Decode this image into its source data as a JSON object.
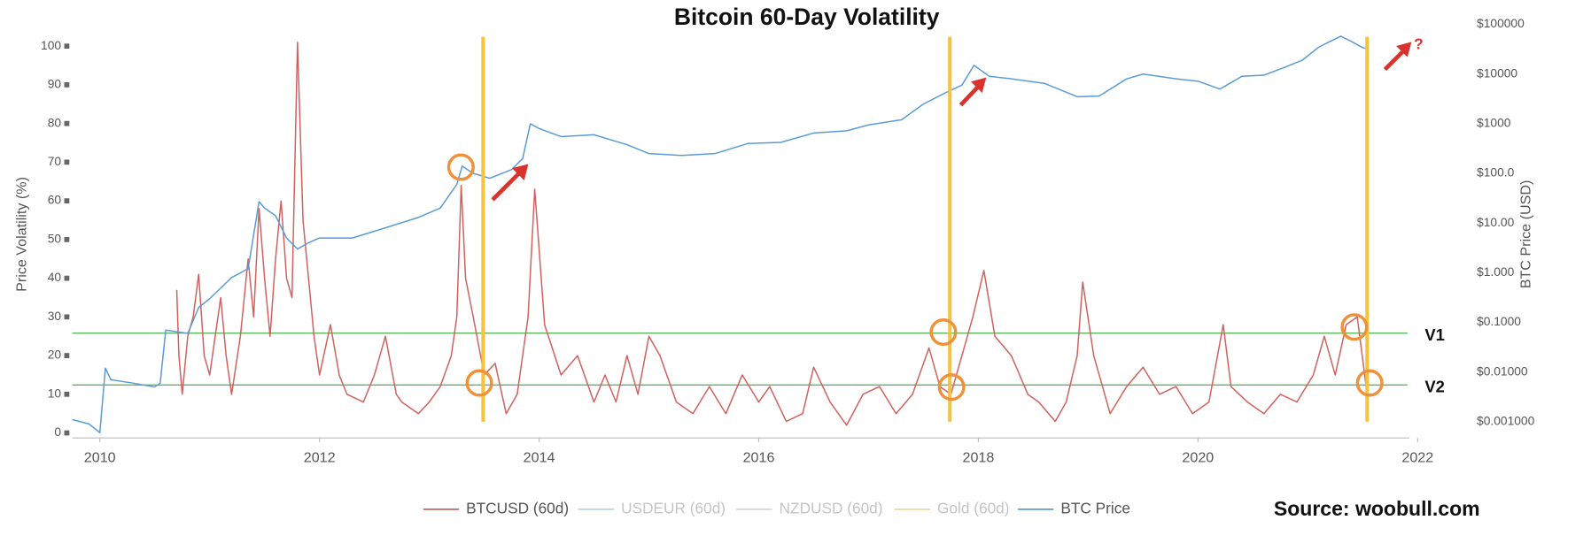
{
  "chart_data": {
    "type": "line",
    "title": "Bitcoin 60-Day Volatility",
    "ylabel": "Price Volatility (%)",
    "y2label": "BTC Price (USD)",
    "source": "Source: woobull.com",
    "xlim": [
      2009.75,
      2022
    ],
    "xticks": [
      2010,
      2012,
      2014,
      2016,
      2018,
      2020,
      2022
    ],
    "ylim": [
      -1.3,
      108.2
    ],
    "yticks": [
      0,
      10,
      20,
      30,
      40,
      50,
      60,
      70,
      80,
      90,
      100
    ],
    "y2lim": [
      0.00047,
      159000
    ],
    "y2scale": "log",
    "y2ticks": [
      {
        "value": 100000,
        "label": "$100000"
      },
      {
        "value": 10000,
        "label": "$10000"
      },
      {
        "value": 1000,
        "label": "$1000"
      },
      {
        "value": 100,
        "label": "$100.0"
      },
      {
        "value": 10,
        "label": "$10.00"
      },
      {
        "value": 1,
        "label": "$1.000"
      },
      {
        "value": 0.1,
        "label": "$0.1000"
      },
      {
        "value": 0.01,
        "label": "$0.01000"
      },
      {
        "value": 0.001,
        "label": "$0.001000"
      }
    ],
    "series": [
      {
        "name": "BTCUSD (60d)",
        "color": "#d0625e",
        "x": [
          2010.7,
          2010.72,
          2010.75,
          2010.8,
          2010.85,
          2010.9,
          2010.95,
          2011.0,
          2011.05,
          2011.1,
          2011.15,
          2011.2,
          2011.28,
          2011.35,
          2011.4,
          2011.45,
          2011.5,
          2011.55,
          2011.6,
          2011.65,
          2011.7,
          2011.75,
          2011.8,
          2011.85,
          2011.9,
          2011.95,
          2012.0,
          2012.1,
          2012.18,
          2012.25,
          2012.4,
          2012.5,
          2012.6,
          2012.7,
          2012.75,
          2012.9,
          2013.0,
          2013.1,
          2013.2,
          2013.25,
          2013.29,
          2013.33,
          2013.4,
          2013.5,
          2013.6,
          2013.7,
          2013.8,
          2013.9,
          2013.96,
          2014.05,
          2014.2,
          2014.35,
          2014.5,
          2014.6,
          2014.7,
          2014.8,
          2014.9,
          2015.0,
          2015.1,
          2015.25,
          2015.4,
          2015.55,
          2015.7,
          2015.85,
          2016.0,
          2016.1,
          2016.25,
          2016.4,
          2016.5,
          2016.65,
          2016.8,
          2016.95,
          2017.1,
          2017.25,
          2017.4,
          2017.55,
          2017.65,
          2017.75,
          2017.85,
          2017.95,
          2018.05,
          2018.15,
          2018.3,
          2018.45,
          2018.55,
          2018.7,
          2018.8,
          2018.9,
          2018.95,
          2019.05,
          2019.2,
          2019.35,
          2019.5,
          2019.65,
          2019.8,
          2019.95,
          2020.1,
          2020.23,
          2020.3,
          2020.45,
          2020.6,
          2020.75,
          2020.9,
          2021.05,
          2021.15,
          2021.25,
          2021.35,
          2021.45,
          2021.55
        ],
        "values": [
          37,
          20,
          10,
          25,
          30,
          41,
          20,
          15,
          25,
          35,
          20,
          10,
          25,
          45,
          30,
          58,
          40,
          25,
          45,
          60,
          40,
          35,
          101,
          55,
          40,
          25,
          15,
          28,
          15,
          10,
          8,
          15,
          25,
          10,
          8,
          5,
          8,
          12,
          20,
          30,
          64,
          40,
          30,
          15,
          18,
          5,
          10,
          30,
          63,
          28,
          15,
          20,
          8,
          15,
          8,
          20,
          10,
          25,
          20,
          8,
          5,
          12,
          5,
          15,
          8,
          12,
          3,
          5,
          17,
          8,
          2,
          10,
          12,
          5,
          10,
          22,
          12,
          10,
          20,
          30,
          42,
          25,
          20,
          10,
          8,
          3,
          8,
          20,
          39,
          20,
          5,
          12,
          17,
          10,
          12,
          5,
          8,
          28,
          12,
          8,
          5,
          10,
          8,
          15,
          25,
          15,
          28,
          30,
          8
        ]
      },
      {
        "name": "BTC Price",
        "color": "#5b9bd5",
        "axis": "y2",
        "x": [
          2009.75,
          2009.9,
          2010.0,
          2010.05,
          2010.1,
          2010.3,
          2010.5,
          2010.55,
          2010.6,
          2010.8,
          2010.9,
          2011.0,
          2011.2,
          2011.35,
          2011.45,
          2011.5,
          2011.6,
          2011.7,
          2011.8,
          2011.9,
          2012.0,
          2012.3,
          2012.6,
          2012.9,
          2013.1,
          2013.25,
          2013.3,
          2013.4,
          2013.55,
          2013.75,
          2013.85,
          2013.92,
          2014.0,
          2014.2,
          2014.5,
          2014.8,
          2015.0,
          2015.3,
          2015.6,
          2015.9,
          2016.2,
          2016.5,
          2016.8,
          2017.0,
          2017.3,
          2017.5,
          2017.7,
          2017.85,
          2017.96,
          2018.1,
          2018.3,
          2018.6,
          2018.9,
          2019.1,
          2019.35,
          2019.5,
          2019.8,
          2020.0,
          2020.2,
          2020.4,
          2020.6,
          2020.8,
          2020.95,
          2021.1,
          2021.2,
          2021.3,
          2021.4,
          2021.5,
          2021.55
        ],
        "values": [
          0.0011,
          0.0009,
          0.0006,
          0.012,
          0.007,
          0.006,
          0.005,
          0.006,
          0.07,
          0.06,
          0.2,
          0.3,
          0.8,
          1.2,
          27,
          20,
          14,
          5,
          3,
          4,
          5,
          5,
          8,
          13,
          20,
          60,
          140,
          100,
          80,
          120,
          200,
          1000,
          800,
          550,
          600,
          380,
          250,
          230,
          250,
          400,
          420,
          650,
          720,
          950,
          1200,
          2500,
          4200,
          6000,
          15000,
          9000,
          8000,
          6500,
          3500,
          3600,
          8000,
          10000,
          8000,
          7200,
          5000,
          9000,
          9500,
          14000,
          19000,
          35000,
          45000,
          58000,
          45000,
          34000,
          32000
        ]
      }
    ],
    "inactive_series": [
      {
        "name": "USDEUR (60d)",
        "color": "#b9d4ec"
      },
      {
        "name": "NZDUSD (60d)",
        "color": "#d6d6d6"
      },
      {
        "name": "Gold (60d)",
        "color": "#f5d49a"
      }
    ],
    "hlines": [
      {
        "value": 25.8,
        "label": "V1",
        "color": "#5cb85c"
      },
      {
        "value": 12.4,
        "label": "V2",
        "color": "#5cb85c"
      }
    ],
    "vlines": {
      "color": "#f5c242",
      "x": [
        2013.49,
        2017.74,
        2021.54
      ]
    },
    "annotations": [
      {
        "text": "?"
      }
    ]
  }
}
